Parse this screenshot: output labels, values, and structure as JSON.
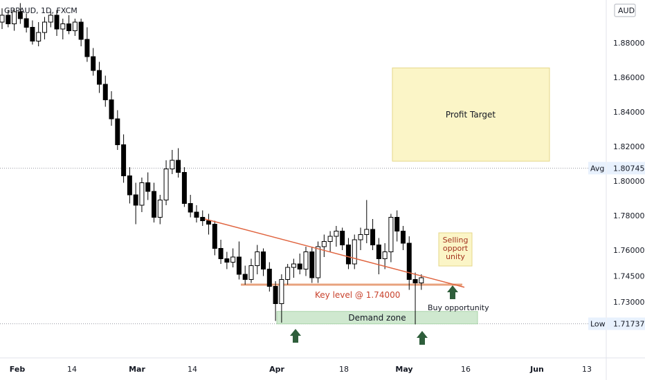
{
  "header": {
    "symbol": "GBPAUD, 1D, FXCM",
    "currency": "AUD"
  },
  "chart_data": {
    "type": "candlestick",
    "x_axis_labels": [
      "Feb",
      "14",
      "Mar",
      "14",
      "Apr",
      "18",
      "May",
      "16",
      "Jun",
      "13"
    ],
    "y_axis_labels": [
      "1.88000",
      "1.86000",
      "1.84000",
      "1.82000",
      "1.80000",
      "1.78000",
      "1.76000",
      "1.74500",
      "1.73000"
    ],
    "ylim": [
      1.705,
      1.9
    ],
    "markers": [
      {
        "label": "Avg",
        "value": "1.80745",
        "y": 1.80745
      },
      {
        "label": "Low",
        "value": "1.71737",
        "y": 1.71737
      }
    ],
    "candles": [
      [
        1.892,
        1.9,
        1.888,
        1.896
      ],
      [
        1.896,
        1.899,
        1.889,
        1.891
      ],
      [
        1.891,
        1.9,
        1.887,
        1.898
      ],
      [
        1.898,
        1.903,
        1.891,
        1.894
      ],
      [
        1.894,
        1.897,
        1.886,
        1.889
      ],
      [
        1.889,
        1.893,
        1.879,
        1.881
      ],
      [
        1.881,
        1.892,
        1.878,
        1.886
      ],
      [
        1.886,
        1.895,
        1.882,
        1.892
      ],
      [
        1.892,
        1.898,
        1.889,
        1.896
      ],
      [
        1.896,
        1.899,
        1.884,
        1.888
      ],
      [
        1.888,
        1.894,
        1.882,
        1.891
      ],
      [
        1.891,
        1.896,
        1.885,
        1.887
      ],
      [
        1.887,
        1.894,
        1.884,
        1.892
      ],
      [
        1.892,
        1.894,
        1.878,
        1.882
      ],
      [
        1.882,
        1.889,
        1.869,
        1.872
      ],
      [
        1.872,
        1.877,
        1.861,
        1.864
      ],
      [
        1.864,
        1.869,
        1.851,
        1.856
      ],
      [
        1.856,
        1.861,
        1.843,
        1.847
      ],
      [
        1.847,
        1.852,
        1.832,
        1.836
      ],
      [
        1.836,
        1.841,
        1.818,
        1.821
      ],
      [
        1.821,
        1.827,
        1.799,
        1.803
      ],
      [
        1.803,
        1.808,
        1.787,
        1.792
      ],
      [
        1.792,
        1.799,
        1.775,
        1.786
      ],
      [
        1.786,
        1.802,
        1.782,
        1.799
      ],
      [
        1.799,
        1.805,
        1.789,
        1.794
      ],
      [
        1.794,
        1.799,
        1.776,
        1.779
      ],
      [
        1.779,
        1.792,
        1.775,
        1.789
      ],
      [
        1.789,
        1.812,
        1.786,
        1.807
      ],
      [
        1.807,
        1.818,
        1.804,
        1.812
      ],
      [
        1.812,
        1.819,
        1.802,
        1.805
      ],
      [
        1.805,
        1.808,
        1.785,
        1.787
      ],
      [
        1.787,
        1.792,
        1.779,
        1.782
      ],
      [
        1.782,
        1.786,
        1.776,
        1.779
      ],
      [
        1.779,
        1.783,
        1.774,
        1.777
      ],
      [
        1.777,
        1.781,
        1.769,
        1.775
      ],
      [
        1.775,
        1.777,
        1.757,
        1.761
      ],
      [
        1.761,
        1.766,
        1.752,
        1.755
      ],
      [
        1.755,
        1.759,
        1.749,
        1.753
      ],
      [
        1.753,
        1.761,
        1.75,
        1.756
      ],
      [
        1.756,
        1.765,
        1.743,
        1.746
      ],
      [
        1.746,
        1.751,
        1.74,
        1.743
      ],
      [
        1.743,
        1.755,
        1.741,
        1.751
      ],
      [
        1.751,
        1.763,
        1.746,
        1.759
      ],
      [
        1.759,
        1.761,
        1.745,
        1.749
      ],
      [
        1.749,
        1.753,
        1.736,
        1.739
      ],
      [
        1.739,
        1.742,
        1.719,
        1.729
      ],
      [
        1.729,
        1.746,
        1.718,
        1.743
      ],
      [
        1.743,
        1.752,
        1.74,
        1.75
      ],
      [
        1.75,
        1.755,
        1.744,
        1.752
      ],
      [
        1.752,
        1.758,
        1.746,
        1.749
      ],
      [
        1.749,
        1.762,
        1.745,
        1.759
      ],
      [
        1.759,
        1.762,
        1.741,
        1.744
      ],
      [
        1.744,
        1.765,
        1.741,
        1.762
      ],
      [
        1.762,
        1.769,
        1.756,
        1.765
      ],
      [
        1.765,
        1.771,
        1.759,
        1.768
      ],
      [
        1.768,
        1.774,
        1.762,
        1.771
      ],
      [
        1.771,
        1.773,
        1.76,
        1.763
      ],
      [
        1.763,
        1.767,
        1.749,
        1.752
      ],
      [
        1.752,
        1.769,
        1.749,
        1.766
      ],
      [
        1.766,
        1.773,
        1.76,
        1.769
      ],
      [
        1.769,
        1.789,
        1.764,
        1.772
      ],
      [
        1.772,
        1.778,
        1.76,
        1.763
      ],
      [
        1.763,
        1.767,
        1.746,
        1.755
      ],
      [
        1.755,
        1.764,
        1.749,
        1.759
      ],
      [
        1.759,
        1.781,
        1.753,
        1.779
      ],
      [
        1.779,
        1.783,
        1.765,
        1.771
      ],
      [
        1.771,
        1.774,
        1.76,
        1.764
      ],
      [
        1.764,
        1.768,
        1.737,
        1.743
      ],
      [
        1.743,
        1.747,
        1.717,
        1.741
      ],
      [
        1.741,
        1.746,
        1.737,
        1.744
      ]
    ],
    "annotations": [
      {
        "text": "Profit Target"
      },
      {
        "text": "Selling opport unity"
      },
      {
        "text": "Key level @ 1.74000"
      },
      {
        "text": "Demand zone"
      },
      {
        "text": "Buy opportunity"
      }
    ],
    "key_level": 1.74,
    "demand_zone": [
      1.7173,
      1.7245
    ],
    "profit_target_zone": [
      1.8115,
      1.8655
    ],
    "trendline": [
      [
        1.778,
        0
      ],
      [
        1.7385,
        1
      ]
    ],
    "colors": {
      "bull_body": "#ffffff",
      "bear_body": "#000000",
      "candle_border": "#000000",
      "trendline": "#e0643f",
      "key_level": "#e8a27d",
      "demand_zone_fill": "#cfe8cf",
      "profit_zone_fill": "#fbf5c7",
      "arrow": "#2e5e3b",
      "key_text": "#c8412b",
      "selling_text": "#a3321e"
    }
  }
}
